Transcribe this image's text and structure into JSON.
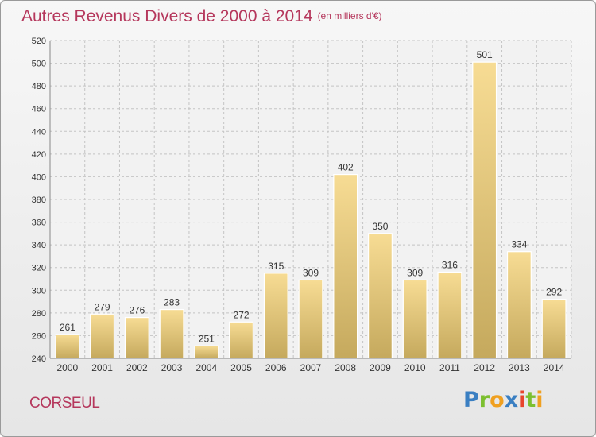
{
  "header": {
    "title": "Autres Revenus Divers de 2000 à 2014",
    "unit": "(en milliers d'€)"
  },
  "footer": {
    "commune": "CORSEUL",
    "brand": "Proxiti"
  },
  "colors": {
    "title": "#b5375c",
    "bar_top": "#f7dc94",
    "bar_bottom": "#c5a95d",
    "grid": "#c4c4c4",
    "axis_text": "#333333"
  },
  "chart_data": {
    "type": "bar",
    "categories": [
      "2000",
      "2001",
      "2002",
      "2003",
      "2004",
      "2005",
      "2006",
      "2007",
      "2008",
      "2009",
      "2010",
      "2011",
      "2012",
      "2013",
      "2014"
    ],
    "values": [
      261,
      279,
      276,
      283,
      251,
      272,
      315,
      309,
      402,
      350,
      309,
      316,
      501,
      334,
      292
    ],
    "ylim": [
      240,
      520
    ],
    "yticks": [
      240,
      260,
      280,
      300,
      320,
      340,
      360,
      380,
      400,
      420,
      440,
      460,
      480,
      500,
      520
    ],
    "grid": true,
    "data_labels": true
  }
}
